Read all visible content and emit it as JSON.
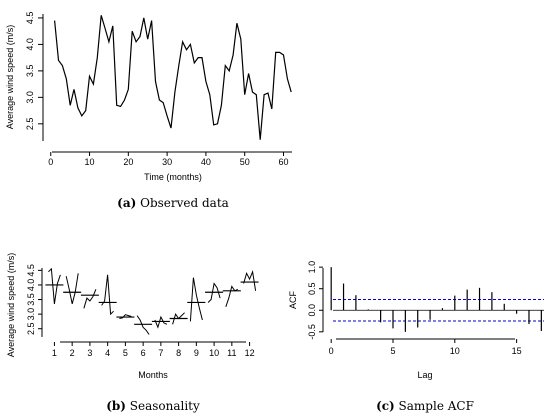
{
  "chart_data": [
    {
      "type": "line",
      "caption_letter": "(a)",
      "caption_text": " Observed data",
      "xlabel": "Time (months)",
      "ylabel": "Average wind speed (m/s)",
      "xlim": [
        -2,
        64
      ],
      "ylim": [
        2.1,
        4.65
      ],
      "xticks": [
        0,
        10,
        20,
        30,
        40,
        50,
        60
      ],
      "yticks": [
        2.5,
        3.0,
        3.5,
        4.0,
        4.5
      ],
      "ytick_labels": [
        "2.5",
        "3.0",
        "3.5",
        "4.0",
        "4.5"
      ],
      "series": [
        {
          "x": [
            1,
            2,
            3,
            4,
            5,
            6,
            7,
            8,
            9,
            10,
            11,
            12,
            13,
            14,
            15,
            16,
            17,
            18,
            19,
            20,
            21,
            22,
            23,
            24,
            25,
            26,
            27,
            28,
            29,
            30,
            31,
            32,
            33,
            34,
            35,
            36,
            37,
            38,
            39,
            40,
            41,
            42,
            43,
            44,
            45,
            46,
            47,
            48,
            49,
            50,
            51,
            52,
            53,
            54,
            55,
            56,
            57,
            58,
            59,
            60,
            61,
            62
          ],
          "values": [
            4.45,
            3.7,
            3.6,
            3.35,
            2.85,
            3.15,
            2.8,
            2.65,
            2.75,
            3.4,
            3.25,
            3.75,
            4.55,
            4.3,
            4.05,
            4.35,
            2.85,
            2.83,
            2.95,
            3.15,
            4.25,
            4.05,
            4.15,
            4.5,
            4.1,
            4.45,
            3.3,
            2.95,
            2.9,
            2.65,
            2.42,
            3.1,
            3.6,
            4.05,
            3.9,
            4.0,
            3.65,
            3.75,
            3.75,
            3.3,
            3.05,
            2.48,
            2.5,
            2.85,
            3.6,
            3.5,
            3.8,
            4.4,
            4.1,
            3.05,
            3.45,
            3.1,
            3.05,
            2.2,
            3.05,
            3.08,
            2.78,
            3.85,
            3.85,
            3.8,
            3.35,
            3.1
          ]
        }
      ]
    },
    {
      "type": "line",
      "caption_letter": "(b)",
      "caption_text": " Seasonality",
      "xlabel": "Months",
      "ylabel": "Average wind speed (m/s)",
      "xlim": [
        0.3,
        12.7
      ],
      "ylim": [
        2.25,
        4.65
      ],
      "xticks": [
        1,
        2,
        3,
        4,
        5,
        6,
        7,
        8,
        9,
        10,
        11,
        12
      ],
      "yticks": [
        2.5,
        3.0,
        3.5,
        4.0,
        4.5
      ],
      "ytick_labels": [
        "2.5",
        "3.0",
        "3.5",
        "4.0",
        "4.5"
      ],
      "months": [
        {
          "values": [
            4.45,
            4.55,
            3.35,
            4.05,
            4.35
          ],
          "mean": 4.0
        },
        {
          "values": [
            4.3,
            3.85,
            3.35,
            3.75,
            4.4
          ],
          "mean": 3.75
        },
        {
          "values": [
            3.2,
            3.55,
            3.45,
            3.6,
            3.85
          ],
          "mean": 3.65
        },
        {
          "values": [
            3.3,
            3.45,
            4.35,
            3.0,
            3.1
          ],
          "mean": 3.4
        },
        {
          "values": [
            2.85,
            2.87,
            2.98,
            2.95,
            2.92
          ],
          "mean": 2.9
        },
        {
          "values": [
            2.95,
            2.8,
            2.55,
            2.45,
            2.3
          ],
          "mean": 2.65
        },
        {
          "values": [
            2.8,
            2.55,
            2.9,
            2.7,
            2.65
          ],
          "mean": 2.75
        },
        {
          "values": [
            2.65,
            3.0,
            2.85,
            2.95,
            3.05
          ],
          "mean": 2.85
        },
        {
          "values": [
            2.75,
            4.25,
            3.65,
            3.2,
            2.8
          ],
          "mean": 3.4
        },
        {
          "values": [
            3.4,
            3.5,
            4.05,
            3.9,
            3.55
          ],
          "mean": 3.75
        },
        {
          "values": [
            3.25,
            3.55,
            3.95,
            3.8,
            3.85
          ],
          "mean": 3.8
        },
        {
          "values": [
            4.05,
            4.4,
            4.2,
            4.45,
            3.8
          ],
          "mean": 4.1
        }
      ]
    },
    {
      "type": "bar",
      "caption_letter": "(c)",
      "caption_text": " Sample ACF",
      "xlabel": "Lag",
      "ylabel": "ACF",
      "xlim": [
        -0.5,
        17.7
      ],
      "ylim": [
        -0.62,
        1.05
      ],
      "xticks": [
        0,
        5,
        10,
        15
      ],
      "yticks": [
        -0.5,
        0.0,
        0.5,
        1.0
      ],
      "ytick_labels": [
        "-0.5",
        "0.0",
        "0.5",
        "1.0"
      ],
      "lags": [
        0,
        1,
        2,
        3,
        4,
        5,
        6,
        7,
        8,
        9,
        10,
        11,
        12,
        13,
        14,
        15,
        16,
        17
      ],
      "values": [
        1.0,
        0.62,
        0.35,
        0.02,
        -0.28,
        -0.42,
        -0.5,
        -0.4,
        -0.22,
        0.05,
        0.34,
        0.48,
        0.52,
        0.42,
        0.15,
        -0.08,
        -0.32,
        -0.48
      ],
      "confidence_band": [
        -0.25,
        0.25
      ],
      "band_color": "#0000cc"
    }
  ]
}
